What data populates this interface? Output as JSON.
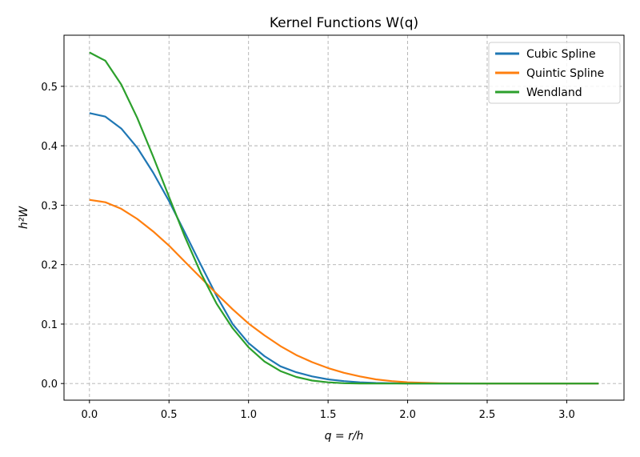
{
  "chart_data": {
    "type": "line",
    "title": "Kernel Functions W(q)",
    "xlabel": "q = r/h",
    "ylabel": "h²W",
    "xlim": [
      -0.16,
      3.36
    ],
    "ylim": [
      -0.028,
      0.586
    ],
    "xticks": [
      0.0,
      0.5,
      1.0,
      1.5,
      2.0,
      2.5,
      3.0
    ],
    "xtick_labels": [
      "0.0",
      "0.5",
      "1.0",
      "1.5",
      "2.0",
      "2.5",
      "3.0"
    ],
    "yticks": [
      0.0,
      0.1,
      0.2,
      0.3,
      0.4,
      0.5
    ],
    "ytick_labels": [
      "0.0",
      "0.1",
      "0.2",
      "0.3",
      "0.4",
      "0.5"
    ],
    "grid": true,
    "legend_position": "top-right",
    "series": [
      {
        "name": "Cubic Spline",
        "color": "#1f77b4",
        "x": [
          0.0,
          0.1,
          0.2,
          0.3,
          0.4,
          0.5,
          0.6,
          0.7,
          0.8,
          0.9,
          1.0,
          1.1,
          1.2,
          1.3,
          1.4,
          1.5,
          1.6,
          1.7,
          1.8,
          1.9,
          2.0,
          2.5,
          3.0,
          3.2
        ],
        "y": [
          0.455,
          0.449,
          0.429,
          0.397,
          0.355,
          0.307,
          0.254,
          0.2,
          0.147,
          0.1,
          0.068,
          0.046,
          0.029,
          0.019,
          0.012,
          0.007,
          0.004,
          0.002,
          0.001,
          0.0005,
          0.0,
          0.0,
          0.0,
          0.0
        ]
      },
      {
        "name": "Quintic Spline",
        "color": "#ff7f0e",
        "x": [
          0.0,
          0.1,
          0.2,
          0.3,
          0.4,
          0.5,
          0.6,
          0.7,
          0.8,
          0.9,
          1.0,
          1.1,
          1.2,
          1.3,
          1.4,
          1.5,
          1.6,
          1.7,
          1.8,
          1.9,
          2.0,
          2.2,
          2.5,
          3.0,
          3.2
        ],
        "y": [
          0.309,
          0.305,
          0.294,
          0.277,
          0.256,
          0.232,
          0.205,
          0.178,
          0.151,
          0.125,
          0.101,
          0.081,
          0.063,
          0.048,
          0.036,
          0.026,
          0.018,
          0.012,
          0.007,
          0.004,
          0.002,
          0.0005,
          0.0,
          0.0,
          0.0
        ]
      },
      {
        "name": "Wendland",
        "color": "#2ca02c",
        "x": [
          0.0,
          0.1,
          0.2,
          0.3,
          0.4,
          0.5,
          0.6,
          0.7,
          0.8,
          0.9,
          1.0,
          1.1,
          1.2,
          1.3,
          1.4,
          1.5,
          1.6,
          1.7,
          1.8,
          1.9,
          2.0,
          2.5,
          3.0,
          3.2
        ],
        "y": [
          0.557,
          0.543,
          0.503,
          0.447,
          0.382,
          0.314,
          0.247,
          0.186,
          0.134,
          0.093,
          0.061,
          0.037,
          0.021,
          0.011,
          0.005,
          0.002,
          0.0006,
          0.0001,
          0.0,
          0.0,
          0.0,
          0.0,
          0.0,
          0.0
        ]
      }
    ]
  }
}
